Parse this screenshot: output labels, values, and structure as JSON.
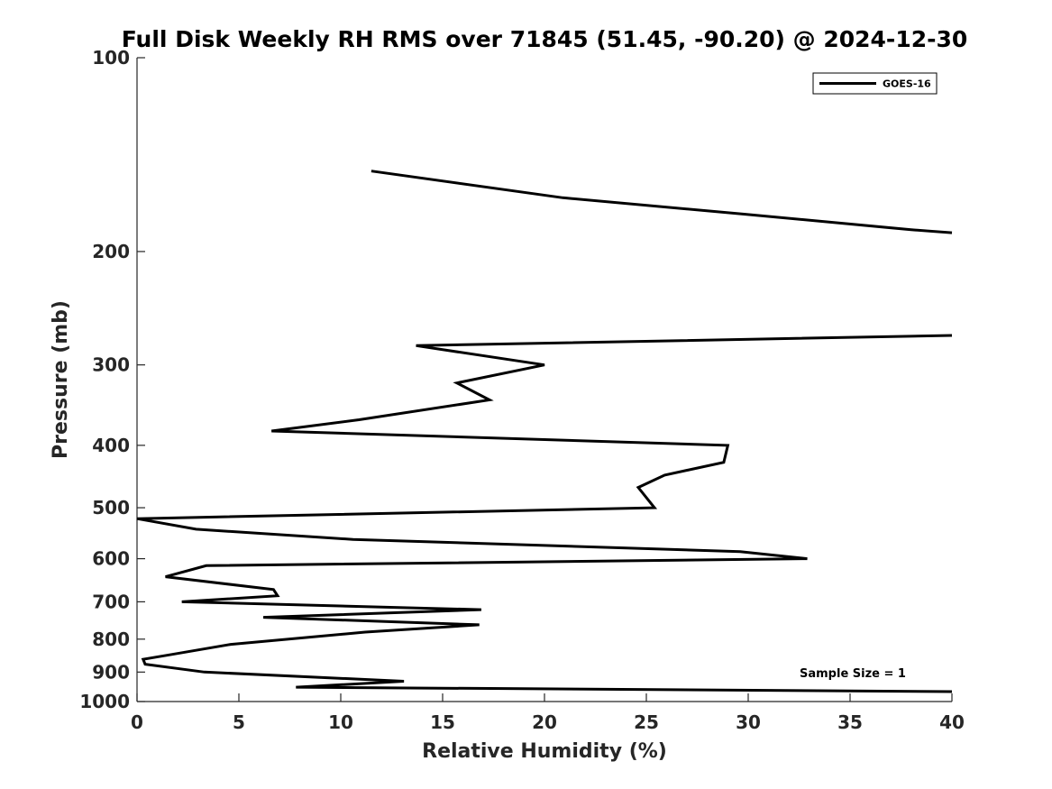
{
  "chart_data": {
    "type": "line",
    "title": "Full Disk Weekly RH RMS over 71845 (51.45, -90.20) @ 2024-12-30",
    "xlabel": "Relative Humidity (%)",
    "ylabel": "Pressure (mb)",
    "xlim": [
      0,
      40
    ],
    "ylim": [
      100,
      1000
    ],
    "y_scale": "log",
    "y_reversed": true,
    "grid": false,
    "legend_position": "top-right",
    "x_ticks": [
      0,
      5,
      10,
      15,
      20,
      25,
      30,
      35,
      40
    ],
    "x_tick_labels": [
      "0",
      "5",
      "10",
      "15",
      "20",
      "25",
      "30",
      "35",
      "40"
    ],
    "y_ticks": [
      100,
      200,
      300,
      400,
      500,
      600,
      700,
      800,
      900,
      1000
    ],
    "y_tick_labels": [
      "100",
      "200",
      "300",
      "400",
      "500",
      "600",
      "700",
      "800",
      "900",
      "1000"
    ],
    "annotation": "Sample Size = 1",
    "series": [
      {
        "name": "GOES-16",
        "color": "#000000",
        "segments": [
          [
            {
              "x": 11.5,
              "y": 150
            },
            {
              "x": 20.9,
              "y": 165
            },
            {
              "x": 29.8,
              "y": 175
            },
            {
              "x": 38.0,
              "y": 185
            },
            {
              "x": 40.0,
              "y": 187
            }
          ],
          [
            {
              "x": 40.0,
              "y": 270
            },
            {
              "x": 13.7,
              "y": 280
            },
            {
              "x": 20.0,
              "y": 300
            },
            {
              "x": 15.7,
              "y": 320
            },
            {
              "x": 17.3,
              "y": 340
            },
            {
              "x": 10.9,
              "y": 365
            },
            {
              "x": 6.6,
              "y": 380
            },
            {
              "x": 29.0,
              "y": 400
            },
            {
              "x": 28.8,
              "y": 425
            },
            {
              "x": 25.9,
              "y": 445
            },
            {
              "x": 24.6,
              "y": 465
            },
            {
              "x": 25.4,
              "y": 500
            },
            {
              "x": 0.0,
              "y": 520
            },
            {
              "x": 2.9,
              "y": 540
            },
            {
              "x": 10.6,
              "y": 560
            },
            {
              "x": 29.6,
              "y": 585
            },
            {
              "x": 32.9,
              "y": 600
            },
            {
              "x": 3.4,
              "y": 615
            },
            {
              "x": 1.4,
              "y": 640
            },
            {
              "x": 6.7,
              "y": 670
            },
            {
              "x": 6.9,
              "y": 685
            },
            {
              "x": 2.2,
              "y": 700
            },
            {
              "x": 16.9,
              "y": 720
            },
            {
              "x": 6.2,
              "y": 740
            },
            {
              "x": 16.8,
              "y": 760
            },
            {
              "x": 11.2,
              "y": 780
            },
            {
              "x": 4.6,
              "y": 815
            },
            {
              "x": 1.7,
              "y": 845
            },
            {
              "x": 0.3,
              "y": 860
            },
            {
              "x": 0.4,
              "y": 875
            },
            {
              "x": 3.3,
              "y": 900
            },
            {
              "x": 13.1,
              "y": 930
            },
            {
              "x": 7.8,
              "y": 950
            },
            {
              "x": 40.0,
              "y": 965
            }
          ]
        ]
      }
    ]
  }
}
